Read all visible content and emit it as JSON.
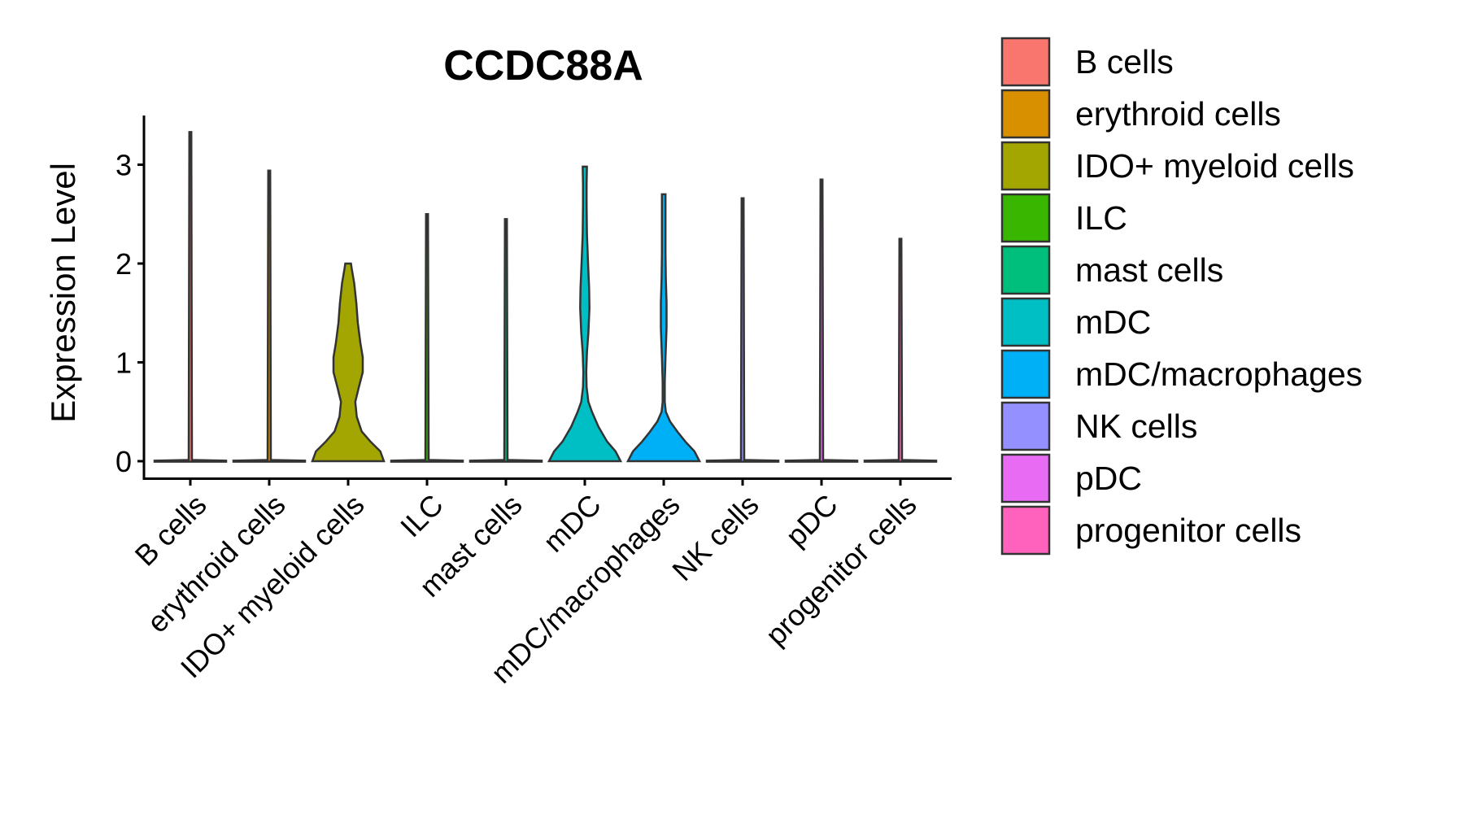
{
  "chart_data": {
    "type": "violin",
    "title": "CCDC88A",
    "xlabel": "",
    "ylabel": "Expression Level",
    "ylim": [
      -0.17,
      3.5
    ],
    "yticks": [
      0,
      1,
      2,
      3
    ],
    "categories": [
      "B cells",
      "erythroid cells",
      "IDO+ myeloid cells",
      "ILC",
      "mast cells",
      "mDC",
      "mDC/macrophages",
      "NK cells",
      "pDC",
      "progenitor cells"
    ],
    "colors": [
      "#F8766D",
      "#D89000",
      "#A3A500",
      "#39B600",
      "#00BF7D",
      "#00BFC4",
      "#00B0F6",
      "#9590FF",
      "#E76BF3",
      "#FF62BC"
    ],
    "max_values": [
      3.33,
      2.94,
      2.0,
      2.5,
      2.45,
      2.98,
      2.7,
      2.66,
      2.85,
      2.25
    ],
    "legend": {
      "position": "right",
      "entries": [
        "B cells",
        "erythroid cells",
        "IDO+ myeloid cells",
        "ILC",
        "mast cells",
        "mDC",
        "mDC/macrophages",
        "NK cells",
        "pDC",
        "progenitor cells"
      ]
    }
  }
}
